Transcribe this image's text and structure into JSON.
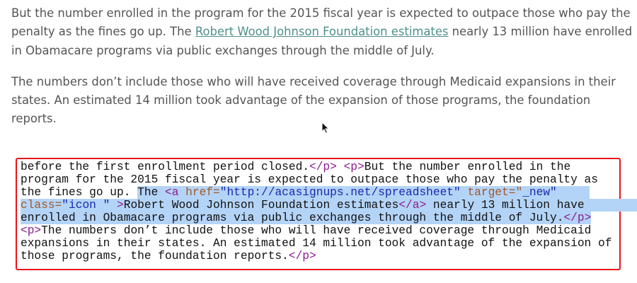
{
  "article": {
    "paragraphs": [
      {
        "lines": [
          [
            {
              "s": "But the number enrolled in the program for the 2015 fiscal year is expected to outpace those who pay the"
            }
          ],
          [
            {
              "s": "penalty as the fines go up. The "
            },
            {
              "s": "Robert Wood Johnson Foundation estimates",
              "link": true
            },
            {
              "s": " nearly 13 million have enrolled"
            }
          ],
          [
            {
              "s": "in Obamacare programs via public exchanges through the middle of July."
            }
          ]
        ]
      },
      {
        "lines": [
          [
            {
              "s": "The numbers don’t include those who will have received coverage through Medicaid expansions in their"
            }
          ],
          [
            {
              "s": "states. An estimated 14 million took advantage of the expansion of those programs, the foundation"
            }
          ],
          [
            {
              "s": "reports."
            }
          ]
        ]
      }
    ],
    "link_color": "#4f8f8a"
  },
  "code": {
    "highlight_color": "#b4d4f7",
    "lines": [
      [
        {
          "s": "before the first enrollment period closed.",
          "c": "t"
        },
        {
          "s": "</p>",
          "c": "tag"
        },
        {
          "s": " ",
          "c": "t"
        },
        {
          "s": "<p>",
          "c": "tag"
        },
        {
          "s": "But the number enrolled in the",
          "c": "t"
        }
      ],
      [
        {
          "s": "program for the 2015 fiscal year is expected to outpace those who pay the penalty as",
          "c": "t"
        }
      ],
      [
        {
          "s": "the fines go up. ",
          "c": "t"
        },
        {
          "s": "The ",
          "c": "t",
          "hl": true
        },
        {
          "s": "<a ",
          "c": "tag",
          "hl": true
        },
        {
          "s": "href=",
          "c": "attr",
          "hl": true
        },
        {
          "s": "\"http://acasignups.net/spreadsheet\"",
          "c": "val",
          "hl": true
        },
        {
          "s": " ",
          "c": "t",
          "hl": true
        },
        {
          "s": "target=\"",
          "c": "attr",
          "hl": true
        },
        {
          "s": "_new\"",
          "c": "val",
          "hl": true
        }
      ],
      [
        {
          "s": "class=",
          "c": "attr",
          "hl": true
        },
        {
          "s": "\"icon \"",
          "c": "val",
          "hl": true
        },
        {
          "s": " >",
          "c": "tag",
          "hl": true
        },
        {
          "s": "Robert Wood Johnson Foundation estimates",
          "c": "t",
          "hl": true
        },
        {
          "s": "</a>",
          "c": "tag",
          "hl": true
        },
        {
          "s": " nearly 13 million have",
          "c": "t",
          "hl": true
        }
      ],
      [
        {
          "s": "enrolled in Obamacare programs via public exchanges through the middle of July.",
          "c": "t",
          "hl": true
        },
        {
          "s": "</p>",
          "c": "tag",
          "hl": true
        }
      ],
      [
        {
          "s": "<p>",
          "c": "tag"
        },
        {
          "s": "The numbers don’t include those who will have received coverage through Medicaid",
          "c": "t"
        }
      ],
      [
        {
          "s": "expansions in their states. An estimated 14 million took advantage of the expansion of",
          "c": "t"
        }
      ],
      [
        {
          "s": "those programs, the foundation reports.",
          "c": "t"
        },
        {
          "s": "</p>",
          "c": "tag"
        }
      ]
    ]
  },
  "cursor": {
    "icon": "mouse-pointer-icon"
  }
}
